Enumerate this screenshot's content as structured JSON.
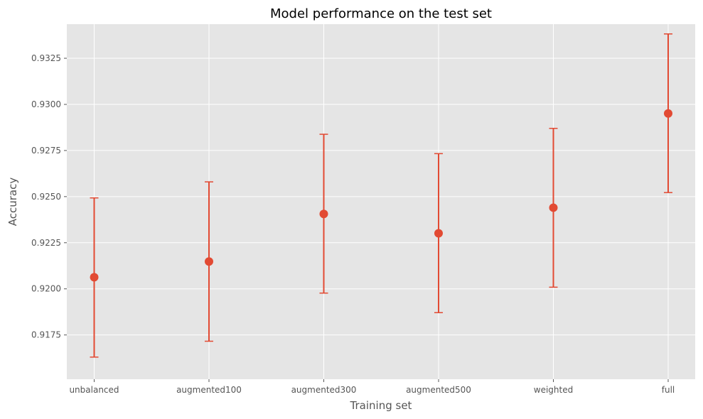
{
  "chart_data": {
    "type": "scatter",
    "title": "Model performance on the test set",
    "xlabel": "Training set",
    "ylabel": "Accuracy",
    "categories": [
      "unbalanced",
      "augmented100",
      "augmented300",
      "augmented500",
      "weighted",
      "full"
    ],
    "series": [
      {
        "values": [
          0.92063,
          0.92148,
          0.92406,
          0.92301,
          0.9244,
          0.92951
        ],
        "err_low": [
          0.9163,
          0.91716,
          0.91977,
          0.91871,
          0.92009,
          0.92522
        ],
        "err_high": [
          0.92493,
          0.9258,
          0.92838,
          0.92733,
          0.9287,
          0.93382
        ]
      }
    ],
    "ylim": [
      0.9151,
      0.93435
    ],
    "yticks": [
      "0.9175",
      "0.9200",
      "0.9225",
      "0.9250",
      "0.9275",
      "0.9300",
      "0.9325"
    ],
    "grid": true,
    "colors": {
      "marker": "#e24a33",
      "background": "#e5e5e5",
      "grid": "#ffffff"
    }
  }
}
